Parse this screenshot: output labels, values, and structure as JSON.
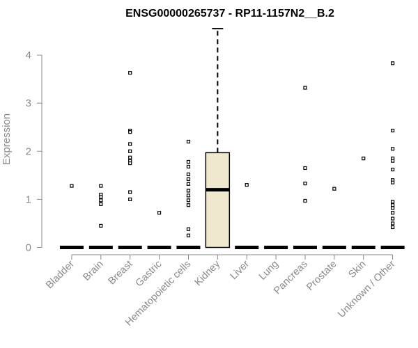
{
  "chart_data": {
    "type": "boxplot",
    "title": "ENSG00000265737 - RP11-1157N2__B.2",
    "ylabel": "Expression",
    "xlabel": "",
    "ylim": [
      0,
      4.6
    ],
    "yticks": [
      0,
      1,
      2,
      3,
      4
    ],
    "grid": false,
    "colors": {
      "box_fill": "#efe8cf",
      "median_fill": "#ffffff",
      "stroke": "#000000",
      "axis": "#8a8a8a"
    },
    "categories": [
      "Bladder",
      "Brain",
      "Breast",
      "Gastric",
      "Hematopoietic cells",
      "Kidney",
      "Liver",
      "Lung",
      "Pancreas",
      "Prostate",
      "Skin",
      "Unknown / Other"
    ],
    "boxes": [
      {
        "category": "Bladder",
        "q1": 0,
        "median": 0,
        "q3": 0,
        "whisker_low": 0,
        "whisker_high": 0,
        "filled": false,
        "outliers": [
          1.28
        ]
      },
      {
        "category": "Brain",
        "q1": 0,
        "median": 0,
        "q3": 0,
        "whisker_low": 0,
        "whisker_high": 0,
        "filled": false,
        "outliers": [
          1.28,
          1.1,
          1.05,
          0.98,
          0.9,
          0.45
        ]
      },
      {
        "category": "Breast",
        "q1": 0,
        "median": 0,
        "q3": 0,
        "whisker_low": 0,
        "whisker_high": 0,
        "filled": false,
        "outliers": [
          3.63,
          2.43,
          2.4,
          2.15,
          2.0,
          1.87,
          1.8,
          1.75,
          1.15,
          1.0
        ]
      },
      {
        "category": "Gastric",
        "q1": 0,
        "median": 0,
        "q3": 0,
        "whisker_low": 0,
        "whisker_high": 0,
        "filled": false,
        "outliers": [
          0.72
        ]
      },
      {
        "category": "Hematopoietic cells",
        "q1": 0,
        "median": 0,
        "q3": 0,
        "whisker_low": 0,
        "whisker_high": 0,
        "filled": false,
        "outliers": [
          2.2,
          1.78,
          1.68,
          1.52,
          1.42,
          1.32,
          1.18,
          1.08,
          0.98,
          0.88,
          0.38,
          0.25
        ]
      },
      {
        "category": "Kidney",
        "q1": 0,
        "median": 1.2,
        "q3": 1.97,
        "whisker_low": 0,
        "whisker_high": 4.55,
        "filled": true,
        "outliers": []
      },
      {
        "category": "Liver",
        "q1": 0,
        "median": 0,
        "q3": 0,
        "whisker_low": 0,
        "whisker_high": 0,
        "filled": false,
        "outliers": [
          1.3
        ]
      },
      {
        "category": "Lung",
        "q1": 0,
        "median": 0,
        "q3": 0,
        "whisker_low": 0,
        "whisker_high": 0,
        "filled": false,
        "outliers": []
      },
      {
        "category": "Pancreas",
        "q1": 0,
        "median": 0,
        "q3": 0,
        "whisker_low": 0,
        "whisker_high": 0,
        "filled": false,
        "outliers": [
          3.32,
          1.65,
          1.33,
          0.97
        ]
      },
      {
        "category": "Prostate",
        "q1": 0,
        "median": 0,
        "q3": 0,
        "whisker_low": 0,
        "whisker_high": 0,
        "filled": false,
        "outliers": [
          1.22
        ]
      },
      {
        "category": "Skin",
        "q1": 0,
        "median": 0,
        "q3": 0,
        "whisker_low": 0,
        "whisker_high": 0,
        "filled": false,
        "outliers": [
          1.85
        ]
      },
      {
        "category": "Unknown / Other",
        "q1": 0,
        "median": 0,
        "q3": 0,
        "whisker_low": 0,
        "whisker_high": 0,
        "filled": false,
        "outliers": [
          3.83,
          2.43,
          2.05,
          1.85,
          1.8,
          1.62,
          1.4,
          1.35,
          0.95,
          0.88,
          0.82,
          0.72,
          0.6,
          0.5,
          0.42
        ]
      }
    ]
  }
}
